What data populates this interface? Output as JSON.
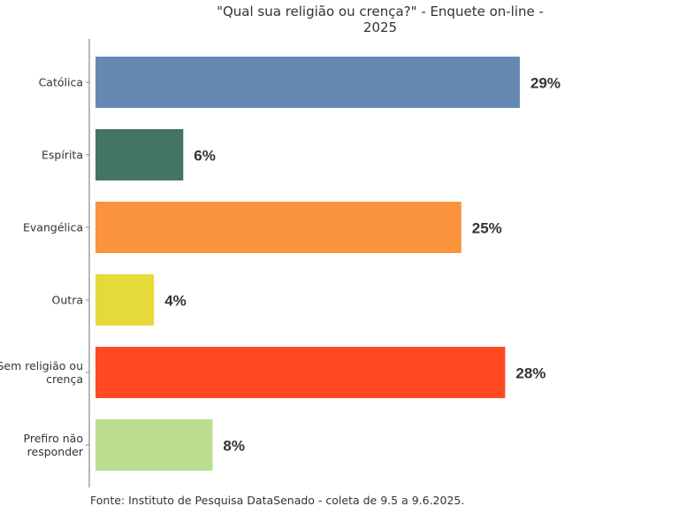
{
  "chart_data": {
    "type": "bar",
    "orientation": "horizontal",
    "title": "\"Qual sua religião ou crença?\" - Enquete on-line -\n2025",
    "categories": [
      "Católica",
      "Espírita",
      "Evangélica",
      "Outra",
      "Sem religião ou crença",
      "Prefiro não responder"
    ],
    "category_lines": [
      [
        "Católica"
      ],
      [
        "Espírita"
      ],
      [
        "Evangélica"
      ],
      [
        "Outra"
      ],
      [
        "Sem religião ou",
        "crença"
      ],
      [
        "Prefiro não",
        "responder"
      ]
    ],
    "values": [
      29,
      6,
      25,
      4,
      28,
      8
    ],
    "data_labels": [
      "29%",
      "6%",
      "25%",
      "4%",
      "28%",
      "8%"
    ],
    "colors": [
      "#6589b3",
      "#447462",
      "#fb923c",
      "#e5da3a",
      "#ff4a23",
      "#badd90"
    ],
    "xlim": [
      0,
      34
    ],
    "xlabel": "",
    "ylabel": "",
    "grid": false,
    "legend": "none",
    "source": "Fonte: Instituto de Pesquisa DataSenado - coleta de 9.5 a 9.6.2025."
  }
}
